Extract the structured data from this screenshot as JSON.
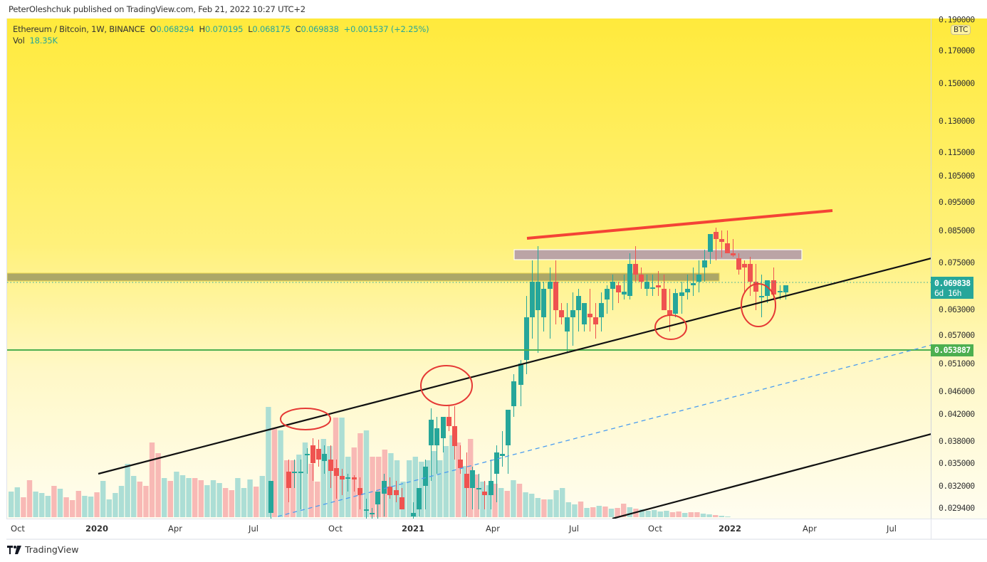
{
  "publisher_line": "PeterOleshchuk published on TradingView.com, Feb 21, 2022 10:27 UTC+2",
  "legend": {
    "symbol": "Ethereum / Bitcoin, 1W, BINANCE",
    "open_label": "O",
    "open": "0.068294",
    "high_label": "H",
    "high": "0.070195",
    "low_label": "L",
    "low": "0.068175",
    "close_label": "C",
    "close": "0.069838",
    "change": "+0.001537 (+2.25%)",
    "vol_label": "Vol",
    "vol": "18.35K"
  },
  "price_axis": {
    "currency_badge": "BTC",
    "ticks": [
      "0.190000",
      "0.170000",
      "0.150000",
      "0.130000",
      "0.115000",
      "0.105000",
      "0.095000",
      "0.085000",
      "0.075000",
      "0.063000",
      "0.057000",
      "0.051000",
      "0.046000",
      "0.042000",
      "0.038000",
      "0.035000",
      "0.032000",
      "0.029400"
    ],
    "last_price": "0.069838",
    "countdown": "6d 16h",
    "support_price": "0.053887"
  },
  "time_axis": {
    "labels": [
      "Oct",
      "2020",
      "Apr",
      "Jul",
      "Oct",
      "2021",
      "Apr",
      "Jul",
      "Oct",
      "2022",
      "Apr",
      "Jul"
    ]
  },
  "footer": {
    "brand": "TradingView"
  },
  "colors": {
    "up": "#26a69a",
    "down": "#ef5350",
    "vol_up": "#a8dcd4",
    "vol_down": "#f8b5b2",
    "resistance_line": "#f44336",
    "channel_line": "#111111",
    "mid_dashed": "#4a9cf0",
    "support_line": "#4caf50",
    "zone_upper": "#b8a0a8",
    "zone_lower": "#9e9a62",
    "circle": "#e53935"
  },
  "chart_data": {
    "type": "candlestick",
    "title": "Ethereum / Bitcoin, 1W, BINANCE",
    "xlabel": "",
    "ylabel": "BTC",
    "ylim": [
      0.0285,
      0.195
    ],
    "y_scale": "log",
    "x_ticks": [
      "Oct 2019",
      "2020",
      "Apr 2020",
      "Jul 2020",
      "Oct 2020",
      "2021",
      "Apr 2021",
      "Jul 2021",
      "Oct 2021",
      "2022",
      "Apr 2022",
      "Jul 2022"
    ],
    "ohlc_last": {
      "open": 0.068294,
      "high": 0.070195,
      "low": 0.068175,
      "close": 0.069838,
      "change": 0.001537,
      "change_pct": 2.25
    },
    "volume_last": "18.35K",
    "candles_approx": [
      {
        "period": "2020-Jul",
        "o": 0.0255,
        "h": 0.0345,
        "l": 0.025,
        "c": 0.0335
      },
      {
        "period": "2020-Aug",
        "o": 0.034,
        "h": 0.038,
        "l": 0.0325,
        "c": 0.036
      },
      {
        "period": "2020-Sep",
        "o": 0.0345,
        "h": 0.0365,
        "l": 0.031,
        "c": 0.033
      },
      {
        "period": "2020-Oct",
        "o": 0.033,
        "h": 0.034,
        "l": 0.03,
        "c": 0.031
      },
      {
        "period": "2020-Nov",
        "o": 0.031,
        "h": 0.032,
        "l": 0.0285,
        "c": 0.029
      },
      {
        "period": "2020-Dec",
        "o": 0.029,
        "h": 0.032,
        "l": 0.0285,
        "c": 0.0305
      },
      {
        "period": "2021-Jan",
        "o": 0.03,
        "h": 0.033,
        "l": 0.029,
        "c": 0.0325
      },
      {
        "period": "2021-Feb",
        "o": 0.033,
        "h": 0.046,
        "l": 0.032,
        "c": 0.043
      },
      {
        "period": "2021-Mar",
        "o": 0.04,
        "h": 0.041,
        "l": 0.033,
        "c": 0.034
      },
      {
        "period": "2021-Apr",
        "o": 0.034,
        "h": 0.04,
        "l": 0.0335,
        "c": 0.039
      },
      {
        "period": "2021-Apr-end",
        "o": 0.039,
        "h": 0.052,
        "l": 0.038,
        "c": 0.05
      },
      {
        "period": "2021-May",
        "o": 0.05,
        "h": 0.083,
        "l": 0.05,
        "c": 0.078
      },
      {
        "period": "2021-Jun",
        "o": 0.076,
        "h": 0.077,
        "l": 0.058,
        "c": 0.06
      },
      {
        "period": "2021-Jul",
        "o": 0.06,
        "h": 0.065,
        "l": 0.056,
        "c": 0.062
      },
      {
        "period": "2021-Aug",
        "o": 0.062,
        "h": 0.072,
        "l": 0.061,
        "c": 0.069
      },
      {
        "period": "2021-Sep",
        "o": 0.069,
        "h": 0.08,
        "l": 0.068,
        "c": 0.076
      },
      {
        "period": "2021-Oct",
        "o": 0.07,
        "h": 0.071,
        "l": 0.061,
        "c": 0.062
      },
      {
        "period": "2021-Nov",
        "o": 0.063,
        "h": 0.075,
        "l": 0.062,
        "c": 0.072
      },
      {
        "period": "2021-Dec",
        "o": 0.072,
        "h": 0.088,
        "l": 0.071,
        "c": 0.086
      },
      {
        "period": "2022-Jan",
        "o": 0.08,
        "h": 0.081,
        "l": 0.064,
        "c": 0.07
      },
      {
        "period": "2022-Feb",
        "o": 0.0682,
        "h": 0.0702,
        "l": 0.0682,
        "c": 0.0698
      }
    ],
    "annotations": [
      {
        "type": "horizontal_line",
        "price": 0.053887,
        "color": "green",
        "label": "0.053887"
      },
      {
        "type": "zone",
        "from": 0.0695,
        "to": 0.0715,
        "label": "lower resistance zone"
      },
      {
        "type": "zone",
        "from": 0.076,
        "to": 0.08,
        "label": "upper resistance zone"
      },
      {
        "type": "trendline",
        "color": "red",
        "desc": "rising resistance from May-2021 high ~0.083 to ~0.092"
      },
      {
        "type": "trendline",
        "color": "black",
        "desc": "rising support channel line"
      },
      {
        "type": "trendline",
        "color": "black",
        "desc": "lower parallel channel line"
      },
      {
        "type": "trendline",
        "color": "blue-dashed",
        "desc": "channel midline"
      },
      {
        "type": "circle",
        "count": 4,
        "desc": "touch points on channel support"
      }
    ]
  }
}
